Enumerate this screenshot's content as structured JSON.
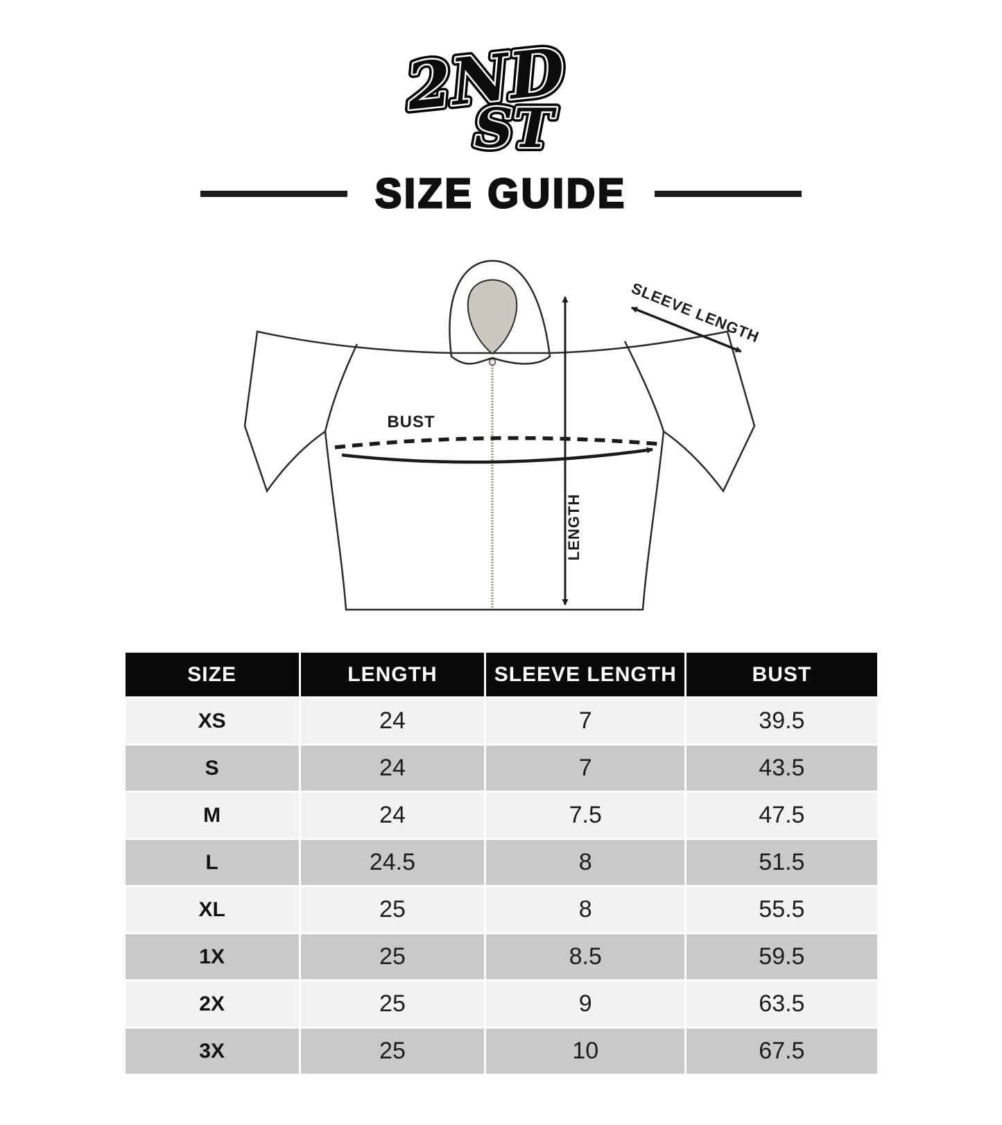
{
  "brand": {
    "line1": "2ND",
    "line2": "ST"
  },
  "title": "SIZE GUIDE",
  "diagram": {
    "labels": {
      "sleeve_length": "SLEEVE LENGTH",
      "bust": "BUST",
      "length": "LENGTH"
    }
  },
  "table": {
    "columns": [
      "SIZE",
      "LENGTH",
      "SLEEVE LENGTH",
      "BUST"
    ],
    "rows": [
      {
        "size": "XS",
        "length": "24",
        "sleeve_length": "7",
        "bust": "39.5"
      },
      {
        "size": "S",
        "length": "24",
        "sleeve_length": "7",
        "bust": "43.5"
      },
      {
        "size": "M",
        "length": "24",
        "sleeve_length": "7.5",
        "bust": "47.5"
      },
      {
        "size": "L",
        "length": "24.5",
        "sleeve_length": "8",
        "bust": "51.5"
      },
      {
        "size": "XL",
        "length": "25",
        "sleeve_length": "8",
        "bust": "55.5"
      },
      {
        "size": "1X",
        "length": "25",
        "sleeve_length": "8.5",
        "bust": "59.5"
      },
      {
        "size": "2X",
        "length": "25",
        "sleeve_length": "9",
        "bust": "63.5"
      },
      {
        "size": "3X",
        "length": "25",
        "sleeve_length": "10",
        "bust": "67.5"
      }
    ]
  },
  "theme": {
    "page_bg": "#ffffff",
    "shirt_color": "#f4ede6",
    "neck_color": "#cbc7c1",
    "outline_color": "#2b2a27",
    "zipper_color": "#a39b91",
    "header_bg": "#0a0a0a",
    "header_text": "#ffffff",
    "row_light": "#f2f2f2",
    "row_dark": "#c9c9c9",
    "ink": "#1d1b19"
  }
}
